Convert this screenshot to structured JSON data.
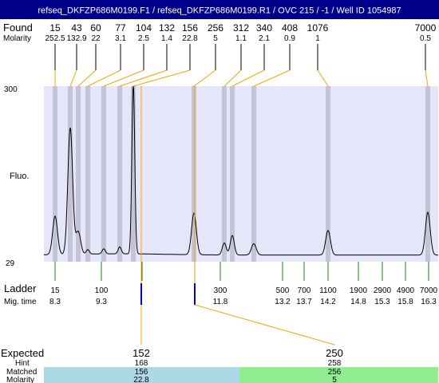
{
  "title": "refseq_DKFZP686M0199.F1 / refseq_DKFZP686M0199.R1 / OVC 215 / -1 / Well ID 1054987",
  "labels": {
    "found": "Found",
    "molarity": "Molarity",
    "fluo": "Fluo.",
    "ladder": "Ladder",
    "mig_time": "Mig. time",
    "expected": "Expected",
    "hint": "Hint",
    "matched": "Matched",
    "molarity_row": "Molarity"
  },
  "colors": {
    "title_bg": "#00008b",
    "title_fg": "#ffffff",
    "plot_bg": "#e6e6fa",
    "band": "#c4c4d6",
    "callout_line": "#f5a300",
    "found_line": "#000000",
    "ladder_line": "#1e7d1e",
    "matched_marker": "#0000cc",
    "matched_box_1": "#add8e6",
    "matched_box_2": "#90ee90"
  },
  "chart_data": {
    "type": "line",
    "y_axis": {
      "top_label": "300",
      "bottom_label": "29",
      "min": 29,
      "max": 300
    },
    "found_peaks": [
      {
        "size": "15",
        "molarity": "252.5"
      },
      {
        "size": "43",
        "molarity": "132.9"
      },
      {
        "size": "60",
        "molarity": "22"
      },
      {
        "size": "77",
        "molarity": "3.1"
      },
      {
        "size": "104",
        "molarity": "2.5"
      },
      {
        "size": "132",
        "molarity": "1.4"
      },
      {
        "size": "156",
        "molarity": "22.8"
      },
      {
        "size": "256",
        "molarity": "5"
      },
      {
        "size": "312",
        "molarity": "1.1"
      },
      {
        "size": "340",
        "molarity": "2.1"
      },
      {
        "size": "408",
        "molarity": "0.9"
      },
      {
        "size": "1076",
        "molarity": "1"
      },
      {
        "size": "7000",
        "molarity": "0.5"
      }
    ],
    "ladder": [
      {
        "size": "15",
        "mig_time": "8.3"
      },
      {
        "size": "100",
        "mig_time": "9.3"
      },
      {
        "size": "300",
        "mig_time": "11.8"
      },
      {
        "size": "500",
        "mig_time": "13.2"
      },
      {
        "size": "700",
        "mig_time": "13.7"
      },
      {
        "size": "1100",
        "mig_time": "14.2"
      },
      {
        "size": "1900",
        "mig_time": "14.8"
      },
      {
        "size": "2900",
        "mig_time": "15.3"
      },
      {
        "size": "4900",
        "mig_time": "15.8"
      },
      {
        "size": "7000",
        "mig_time": "16.3"
      }
    ],
    "ladder_unlabeled_marks": 1,
    "expected": [
      {
        "expected": "152",
        "hint": "168",
        "matched": "156",
        "molarity": "22.8"
      },
      {
        "expected": "250",
        "hint": "258",
        "matched": "256",
        "molarity": "5"
      }
    ],
    "trace_peaks": [
      {
        "found_index": 0,
        "height": 90
      },
      {
        "found_index": 1,
        "height": 230
      },
      {
        "found_index": 2,
        "height": 65
      },
      {
        "found_index": 3,
        "height": 36
      },
      {
        "found_index": 4,
        "height": 37
      },
      {
        "found_index": 5,
        "height": 40
      },
      {
        "found_index": 6,
        "height": 300
      },
      {
        "found_index": 7,
        "height": 95
      },
      {
        "found_index": 8,
        "height": 48
      },
      {
        "found_index": 9,
        "height": 60
      },
      {
        "found_index": 10,
        "height": 47
      },
      {
        "found_index": 11,
        "height": 68
      },
      {
        "found_index": 12,
        "height": 97
      }
    ]
  }
}
